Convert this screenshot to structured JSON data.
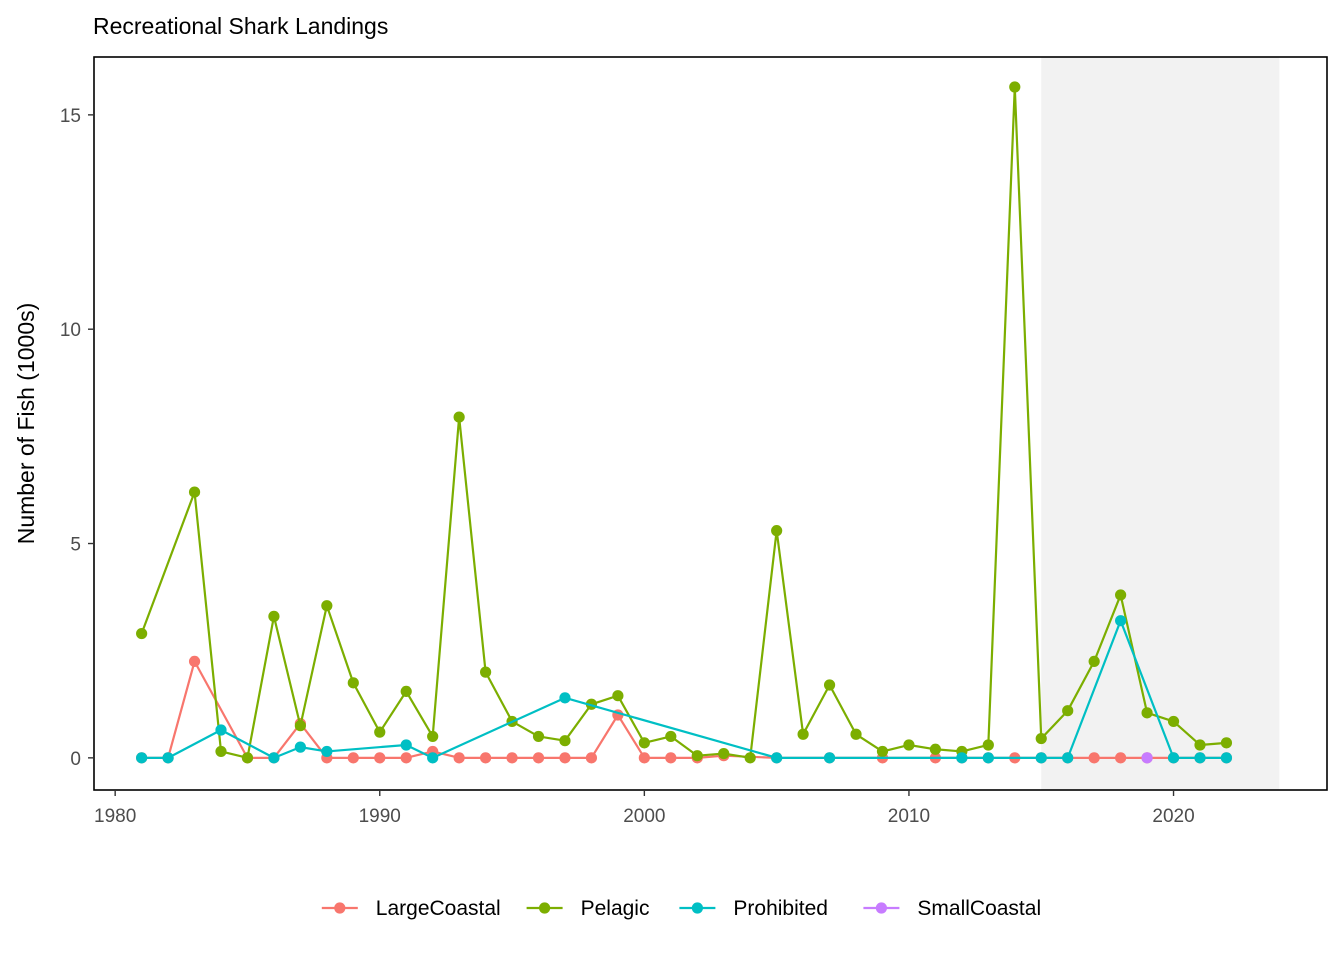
{
  "chart_data": {
    "type": "line",
    "title": "Recreational Shark Landings",
    "xlabel": "",
    "ylabel": "Number of Fish (1000s)",
    "xlim": [
      1979.2,
      2025.8
    ],
    "ylim": [
      -0.75,
      16.35
    ],
    "x_ticks": [
      1980,
      1990,
      2000,
      2010,
      2020
    ],
    "y_ticks": [
      0,
      5,
      10,
      15
    ],
    "grid": false,
    "legend_position": "bottom",
    "shaded_region": {
      "x_start": 2015,
      "x_end": 2024,
      "color": "#f2f2f2"
    },
    "series": [
      {
        "name": "LargeCoastal",
        "color": "#F8766D",
        "x": [
          1981,
          1982,
          1983,
          1985,
          1986,
          1987,
          1988,
          1989,
          1990,
          1991,
          1992,
          1993,
          1994,
          1995,
          1996,
          1997,
          1998,
          1999,
          2000,
          2001,
          2002,
          2003,
          2005,
          2007,
          2009,
          2011,
          2012,
          2013,
          2014,
          2015,
          2016,
          2017,
          2018,
          2019,
          2020,
          2021,
          2022
        ],
        "y": [
          0,
          0,
          2.25,
          0,
          0,
          0.8,
          0,
          0,
          0,
          0,
          0.15,
          0,
          0,
          0,
          0,
          0,
          0,
          1.0,
          0,
          0,
          0,
          0.05,
          0,
          0,
          0,
          0,
          0,
          0,
          0,
          0,
          0,
          0,
          0,
          0,
          0,
          0,
          0
        ]
      },
      {
        "name": "Pelagic",
        "color": "#7CAE00",
        "x": [
          1981,
          1983,
          1984,
          1985,
          1986,
          1987,
          1988,
          1989,
          1990,
          1991,
          1992,
          1993,
          1994,
          1995,
          1996,
          1997,
          1998,
          1999,
          2000,
          2001,
          2002,
          2003,
          2004,
          2005,
          2006,
          2007,
          2008,
          2009,
          2010,
          2011,
          2012,
          2013,
          2014,
          2015,
          2016,
          2017,
          2018,
          2019,
          2020,
          2021,
          2022
        ],
        "y": [
          2.9,
          6.2,
          0.15,
          0,
          3.3,
          0.75,
          3.55,
          1.75,
          0.6,
          1.55,
          0.5,
          7.95,
          2.0,
          0.85,
          0.5,
          0.4,
          1.25,
          1.45,
          0.35,
          0.5,
          0.05,
          0.1,
          0,
          5.3,
          0.55,
          1.7,
          0.55,
          0.15,
          0.3,
          0.2,
          0.15,
          0.3,
          15.65,
          0.45,
          1.1,
          2.25,
          3.8,
          1.05,
          0.85,
          0.3,
          0.35
        ]
      },
      {
        "name": "Prohibited",
        "color": "#00BFC4",
        "x": [
          1981,
          1982,
          1984,
          1986,
          1987,
          1988,
          1991,
          1992,
          1997,
          2005,
          2007,
          2012,
          2013,
          2015,
          2016,
          2018,
          2020,
          2021,
          2022
        ],
        "y": [
          0,
          0,
          0.65,
          0,
          0.25,
          0.15,
          0.3,
          0,
          1.4,
          0,
          0,
          0,
          0,
          0,
          0,
          3.2,
          0,
          0,
          0
        ]
      },
      {
        "name": "SmallCoastal",
        "color": "#C77CFF",
        "x": [
          2019
        ],
        "y": [
          0
        ]
      }
    ]
  }
}
